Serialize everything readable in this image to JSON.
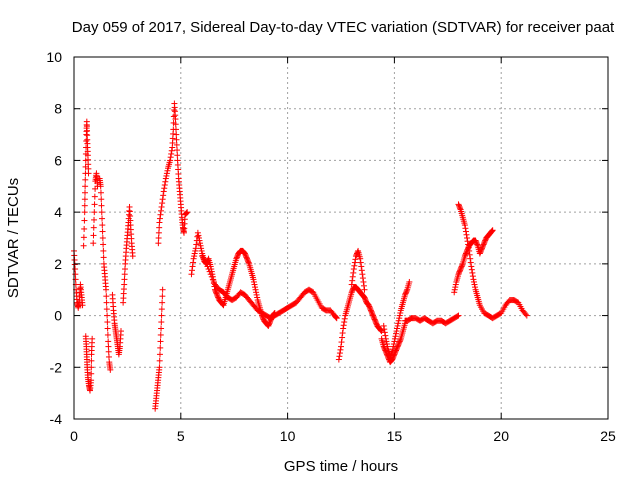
{
  "chart_data": {
    "type": "scatter",
    "title": "Day 059 of 2017, Sidereal Day-to-day VTEC variation (SDTVAR) for receiver paat",
    "xlabel": "GPS time / hours",
    "ylabel": "SDTVAR / TECUs",
    "xlim": [
      0,
      25
    ],
    "ylim": [
      -4,
      10
    ],
    "xticks": [
      0,
      5,
      10,
      15,
      20,
      25
    ],
    "yticks": [
      -4,
      -2,
      0,
      2,
      4,
      6,
      8,
      10
    ],
    "xtick_labels": [
      "0",
      "5",
      "10",
      "15",
      "20",
      "25"
    ],
    "ytick_labels": [
      "-4",
      "-2",
      "0",
      "2",
      "4",
      "6",
      "8",
      "10"
    ],
    "grid": true,
    "marker": "+",
    "color": "#ff0000",
    "series": [
      {
        "name": "SDTVAR",
        "traces": [
          [
            [
              0.0,
              2.5
            ],
            [
              0.05,
              1.8
            ],
            [
              0.1,
              1.0
            ],
            [
              0.15,
              0.5
            ],
            [
              0.2,
              0.3
            ],
            [
              0.25,
              0.6
            ],
            [
              0.3,
              1.2
            ],
            [
              0.35,
              0.8
            ],
            [
              0.4,
              0.4
            ]
          ],
          [
            [
              0.45,
              2.7
            ],
            [
              0.5,
              4.0
            ],
            [
              0.52,
              5.0
            ],
            [
              0.55,
              6.0
            ],
            [
              0.58,
              7.0
            ],
            [
              0.6,
              7.5
            ],
            [
              0.62,
              6.8
            ],
            [
              0.65,
              6.2
            ],
            [
              0.68,
              5.5
            ]
          ],
          [
            [
              0.55,
              -0.8
            ],
            [
              0.58,
              -1.2
            ],
            [
              0.6,
              -1.6
            ],
            [
              0.62,
              -2.0
            ],
            [
              0.65,
              -2.4
            ],
            [
              0.7,
              -2.7
            ],
            [
              0.75,
              -2.9
            ],
            [
              0.8,
              -2.5
            ],
            [
              0.82,
              -1.5
            ],
            [
              0.85,
              -0.9
            ]
          ],
          [
            [
              0.9,
              2.8
            ],
            [
              0.95,
              4.0
            ],
            [
              1.0,
              5.2
            ],
            [
              1.05,
              5.5
            ],
            [
              1.1,
              5.0
            ]
          ],
          [
            [
              1.2,
              5.3
            ],
            [
              1.25,
              5.0
            ],
            [
              1.3,
              4.0
            ],
            [
              1.35,
              3.0
            ],
            [
              1.4,
              2.0
            ],
            [
              1.45,
              1.5
            ],
            [
              1.5,
              1.0
            ],
            [
              1.55,
              0.0
            ],
            [
              1.6,
              -1.0
            ],
            [
              1.65,
              -1.8
            ],
            [
              1.7,
              -2.1
            ]
          ],
          [
            [
              1.8,
              0.8
            ],
            [
              1.85,
              0.2
            ],
            [
              1.9,
              -0.3
            ],
            [
              1.95,
              -0.6
            ],
            [
              2.0,
              -0.9
            ],
            [
              2.05,
              -1.2
            ],
            [
              2.1,
              -1.5
            ],
            [
              2.15,
              -1.2
            ],
            [
              2.2,
              -0.6
            ]
          ],
          [
            [
              2.3,
              0.5
            ],
            [
              2.35,
              1.2
            ],
            [
              2.4,
              2.0
            ],
            [
              2.45,
              2.6
            ],
            [
              2.5,
              3.1
            ],
            [
              2.55,
              3.6
            ],
            [
              2.6,
              4.2
            ],
            [
              2.65,
              3.5
            ],
            [
              2.7,
              2.8
            ],
            [
              2.75,
              2.3
            ]
          ],
          [
            [
              3.8,
              -3.6
            ],
            [
              3.85,
              -3.2
            ],
            [
              3.9,
              -2.8
            ],
            [
              3.95,
              -2.4
            ],
            [
              4.0,
              -2.0
            ],
            [
              4.05,
              -1.0
            ],
            [
              4.1,
              0.0
            ],
            [
              4.15,
              1.0
            ]
          ],
          [
            [
              3.95,
              2.8
            ],
            [
              4.0,
              3.6
            ],
            [
              4.1,
              4.2
            ],
            [
              4.2,
              4.8
            ],
            [
              4.3,
              5.3
            ],
            [
              4.4,
              5.7
            ],
            [
              4.5,
              6.0
            ],
            [
              4.6,
              6.5
            ],
            [
              4.65,
              7.2
            ],
            [
              4.7,
              8.2
            ],
            [
              4.75,
              7.6
            ],
            [
              4.8,
              6.8
            ],
            [
              4.85,
              6.0
            ],
            [
              4.9,
              5.3
            ],
            [
              4.95,
              4.8
            ],
            [
              5.0,
              4.3
            ],
            [
              5.05,
              3.8
            ],
            [
              5.1,
              3.4
            ],
            [
              5.15,
              3.2
            ],
            [
              5.2,
              3.9
            ],
            [
              5.3,
              4.0
            ]
          ],
          [
            [
              5.5,
              1.6
            ],
            [
              5.6,
              2.2
            ],
            [
              5.7,
              2.6
            ],
            [
              5.8,
              3.2
            ],
            [
              5.9,
              2.8
            ],
            [
              6.0,
              2.4
            ],
            [
              6.1,
              2.1
            ],
            [
              6.2,
              2.0
            ],
            [
              6.3,
              2.2
            ],
            [
              6.4,
              1.9
            ],
            [
              6.5,
              1.5
            ],
            [
              6.6,
              1.0
            ],
            [
              6.7,
              0.8
            ],
            [
              6.8,
              0.6
            ],
            [
              6.9,
              0.5
            ],
            [
              7.0,
              0.4
            ],
            [
              7.1,
              0.7
            ],
            [
              7.2,
              1.0
            ],
            [
              7.3,
              1.3
            ],
            [
              7.4,
              1.6
            ],
            [
              7.5,
              1.9
            ],
            [
              7.6,
              2.2
            ],
            [
              7.7,
              2.4
            ],
            [
              7.8,
              2.5
            ],
            [
              7.9,
              2.5
            ],
            [
              8.0,
              2.4
            ],
            [
              8.1,
              2.2
            ],
            [
              8.2,
              2.0
            ],
            [
              8.3,
              1.7
            ],
            [
              8.4,
              1.4
            ],
            [
              8.5,
              1.0
            ],
            [
              8.6,
              0.6
            ],
            [
              8.7,
              0.3
            ],
            [
              8.8,
              0.0
            ],
            [
              8.9,
              -0.2
            ],
            [
              9.0,
              -0.3
            ],
            [
              9.1,
              -0.4
            ],
            [
              9.2,
              -0.2
            ],
            [
              9.3,
              0.0
            ],
            [
              9.4,
              0.1
            ]
          ],
          [
            [
              6.0,
              2.3
            ],
            [
              6.2,
              2.0
            ],
            [
              6.4,
              1.6
            ],
            [
              6.6,
              1.2
            ],
            [
              6.8,
              1.0
            ],
            [
              7.0,
              0.9
            ],
            [
              7.2,
              0.7
            ],
            [
              7.4,
              0.6
            ],
            [
              7.6,
              0.7
            ],
            [
              7.8,
              0.9
            ],
            [
              8.0,
              0.8
            ],
            [
              8.2,
              0.6
            ],
            [
              8.4,
              0.4
            ],
            [
              8.6,
              0.2
            ],
            [
              8.8,
              0.1
            ],
            [
              9.0,
              0.0
            ],
            [
              9.2,
              -0.1
            ],
            [
              9.4,
              0.0
            ],
            [
              9.6,
              0.1
            ],
            [
              9.8,
              0.2
            ],
            [
              10.0,
              0.3
            ],
            [
              10.2,
              0.4
            ],
            [
              10.4,
              0.5
            ],
            [
              10.6,
              0.7
            ],
            [
              10.8,
              0.9
            ],
            [
              11.0,
              1.0
            ],
            [
              11.2,
              0.9
            ],
            [
              11.4,
              0.6
            ],
            [
              11.6,
              0.3
            ],
            [
              11.8,
              0.2
            ],
            [
              12.0,
              0.2
            ],
            [
              12.2,
              0.0
            ],
            [
              12.3,
              -0.1
            ]
          ],
          [
            [
              12.4,
              -1.7
            ],
            [
              12.5,
              -1.2
            ],
            [
              12.6,
              -0.5
            ],
            [
              12.7,
              0.0
            ],
            [
              12.8,
              0.3
            ],
            [
              12.9,
              0.6
            ],
            [
              13.0,
              0.9
            ],
            [
              13.1,
              1.1
            ],
            [
              13.2,
              1.1
            ],
            [
              13.3,
              1.0
            ],
            [
              13.4,
              0.9
            ],
            [
              13.5,
              0.8
            ],
            [
              13.6,
              0.7
            ],
            [
              13.7,
              0.5
            ],
            [
              13.8,
              0.4
            ],
            [
              13.9,
              0.2
            ],
            [
              14.0,
              0.0
            ],
            [
              14.1,
              -0.2
            ],
            [
              14.2,
              -0.4
            ],
            [
              14.3,
              -0.5
            ],
            [
              14.4,
              -0.6
            ]
          ],
          [
            [
              13.0,
              1.2
            ],
            [
              13.1,
              1.8
            ],
            [
              13.2,
              2.3
            ],
            [
              13.3,
              2.5
            ],
            [
              13.4,
              2.2
            ],
            [
              13.5,
              1.6
            ],
            [
              13.6,
              1.0
            ]
          ],
          [
            [
              14.4,
              -0.9
            ],
            [
              14.5,
              -1.2
            ],
            [
              14.6,
              -1.4
            ],
            [
              14.7,
              -1.6
            ],
            [
              14.8,
              -1.8
            ],
            [
              14.9,
              -1.7
            ],
            [
              15.0,
              -1.5
            ],
            [
              15.1,
              -1.3
            ],
            [
              15.2,
              -1.1
            ],
            [
              15.3,
              -0.9
            ],
            [
              15.4,
              -0.6
            ],
            [
              15.5,
              -0.3
            ]
          ],
          [
            [
              14.5,
              -0.4
            ],
            [
              14.6,
              -0.9
            ],
            [
              14.7,
              -1.3
            ],
            [
              14.8,
              -1.6
            ],
            [
              14.9,
              -1.4
            ],
            [
              15.0,
              -1.0
            ],
            [
              15.1,
              -0.6
            ],
            [
              15.2,
              -0.2
            ],
            [
              15.3,
              0.2
            ],
            [
              15.4,
              0.5
            ],
            [
              15.5,
              0.8
            ],
            [
              15.6,
              1.0
            ],
            [
              15.7,
              1.3
            ]
          ],
          [
            [
              15.5,
              -0.2
            ],
            [
              15.6,
              -0.2
            ],
            [
              15.8,
              -0.1
            ],
            [
              16.0,
              -0.1
            ],
            [
              16.2,
              -0.2
            ],
            [
              16.4,
              -0.1
            ],
            [
              16.6,
              -0.2
            ],
            [
              16.8,
              -0.3
            ],
            [
              17.0,
              -0.2
            ],
            [
              17.2,
              -0.2
            ],
            [
              17.4,
              -0.3
            ],
            [
              17.6,
              -0.2
            ],
            [
              17.8,
              -0.1
            ],
            [
              18.0,
              0.0
            ]
          ],
          [
            [
              17.8,
              0.9
            ],
            [
              17.9,
              1.3
            ],
            [
              18.0,
              1.6
            ],
            [
              18.1,
              1.8
            ],
            [
              18.2,
              2.0
            ],
            [
              18.3,
              2.3
            ],
            [
              18.4,
              2.5
            ],
            [
              18.5,
              2.7
            ],
            [
              18.6,
              2.8
            ],
            [
              18.7,
              2.9
            ],
            [
              18.8,
              2.9
            ],
            [
              18.9,
              2.7
            ],
            [
              19.0,
              2.4
            ],
            [
              19.1,
              2.6
            ],
            [
              19.2,
              2.8
            ],
            [
              19.3,
              3.0
            ],
            [
              19.4,
              3.1
            ],
            [
              19.5,
              3.2
            ],
            [
              19.6,
              3.3
            ]
          ],
          [
            [
              18.0,
              4.3
            ],
            [
              18.1,
              4.1
            ],
            [
              18.2,
              3.8
            ],
            [
              18.3,
              3.5
            ],
            [
              18.4,
              3.0
            ],
            [
              18.5,
              2.5
            ],
            [
              18.6,
              1.9
            ],
            [
              18.7,
              1.4
            ],
            [
              18.8,
              1.0
            ],
            [
              18.9,
              0.7
            ],
            [
              19.0,
              0.4
            ],
            [
              19.2,
              0.1
            ],
            [
              19.4,
              0.0
            ],
            [
              19.6,
              -0.1
            ],
            [
              19.8,
              0.0
            ],
            [
              20.0,
              0.1
            ],
            [
              20.2,
              0.4
            ],
            [
              20.4,
              0.6
            ],
            [
              20.6,
              0.6
            ],
            [
              20.8,
              0.5
            ],
            [
              21.0,
              0.2
            ],
            [
              21.2,
              0.0
            ]
          ]
        ]
      }
    ]
  }
}
